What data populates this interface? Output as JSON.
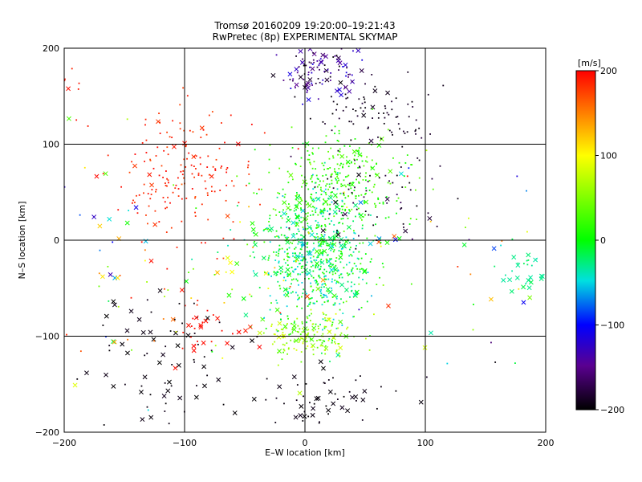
{
  "chart_data": {
    "type": "scatter",
    "title_lines": [
      "Tromsø 20160209 19:20:00–19:21:43",
      "RwPretec (8p) EXPERIMENTAL SKYMAP"
    ],
    "xlabel": "E–W location [km]",
    "ylabel": "N–S location [km]",
    "xlim": [
      -200,
      200
    ],
    "ylim": [
      -200,
      200
    ],
    "xticks": [
      -200,
      -100,
      0,
      100,
      200
    ],
    "yticks": [
      -200,
      -100,
      0,
      100,
      200
    ],
    "grid": true,
    "colorbar": {
      "label": "[m/s]",
      "range": [
        -200,
        200
      ],
      "ticks": [
        200,
        100,
        0,
        -100,
        -200
      ],
      "colormap": "rainbow: black(-200) → purple → blue(-100) → cyan → green(0) → yellow(100) → orange → red(200)"
    },
    "marker_types": [
      "dot",
      "cross"
    ],
    "clusters": [
      {
        "cx": 8,
        "cy": -15,
        "sx": 22,
        "sy": 35,
        "n": 700,
        "vmin": -60,
        "vmax": 30,
        "cross_ratio": 0.12
      },
      {
        "cx": 25,
        "cy": 60,
        "sx": 28,
        "sy": 28,
        "n": 300,
        "vmin": 0,
        "vmax": 40,
        "cross_ratio": 0.08
      },
      {
        "cx": 5,
        "cy": -100,
        "sx": 20,
        "sy": 12,
        "n": 150,
        "vmin": 20,
        "vmax": 90,
        "cross_ratio": 0.15
      },
      {
        "cx": 15,
        "cy": 175,
        "sx": 20,
        "sy": 15,
        "n": 110,
        "vmin": -200,
        "vmax": -110,
        "cross_ratio": 0.35
      },
      {
        "cx": 60,
        "cy": 130,
        "sx": 25,
        "sy": 20,
        "n": 80,
        "vmin": -200,
        "vmax": -180,
        "cross_ratio": 0.05
      },
      {
        "cx": -100,
        "cy": 65,
        "sx": 28,
        "sy": 32,
        "n": 170,
        "vmin": 170,
        "vmax": 200,
        "cross_ratio": 0.08
      },
      {
        "cx": 60,
        "cy": 40,
        "sx": 25,
        "sy": 22,
        "n": 60,
        "vmin": -200,
        "vmax": -170,
        "cross_ratio": 0.05
      },
      {
        "cx": -120,
        "cy": -130,
        "sx": 40,
        "sy": 45,
        "n": 80,
        "vmin": -200,
        "vmax": -190,
        "cross_ratio": 0.4
      },
      {
        "cx": 20,
        "cy": -165,
        "sx": 30,
        "sy": 20,
        "n": 60,
        "vmin": -200,
        "vmax": -190,
        "cross_ratio": 0.35
      },
      {
        "cx": 180,
        "cy": -30,
        "sx": 12,
        "sy": 15,
        "n": 30,
        "vmin": -40,
        "vmax": -15,
        "cross_ratio": 0.7
      },
      {
        "cx": -50,
        "cy": -40,
        "sx": 60,
        "sy": 40,
        "n": 90,
        "vmin": -40,
        "vmax": 200,
        "cross_ratio": 0.2
      },
      {
        "cx": 110,
        "cy": -20,
        "sx": 55,
        "sy": 60,
        "n": 50,
        "vmin": -200,
        "vmax": 200,
        "cross_ratio": 0.35
      },
      {
        "cx": -160,
        "cy": 20,
        "sx": 35,
        "sy": 80,
        "n": 45,
        "vmin": -150,
        "vmax": 200,
        "cross_ratio": 0.5
      },
      {
        "cx": -195,
        "cy": 160,
        "sx": 6,
        "sy": 10,
        "n": 12,
        "vmin": 185,
        "vmax": 200,
        "cross_ratio": 0.5
      },
      {
        "cx": -85,
        "cy": -95,
        "sx": 18,
        "sy": 15,
        "n": 30,
        "vmin": 190,
        "vmax": 200,
        "cross_ratio": 0.5
      }
    ]
  }
}
